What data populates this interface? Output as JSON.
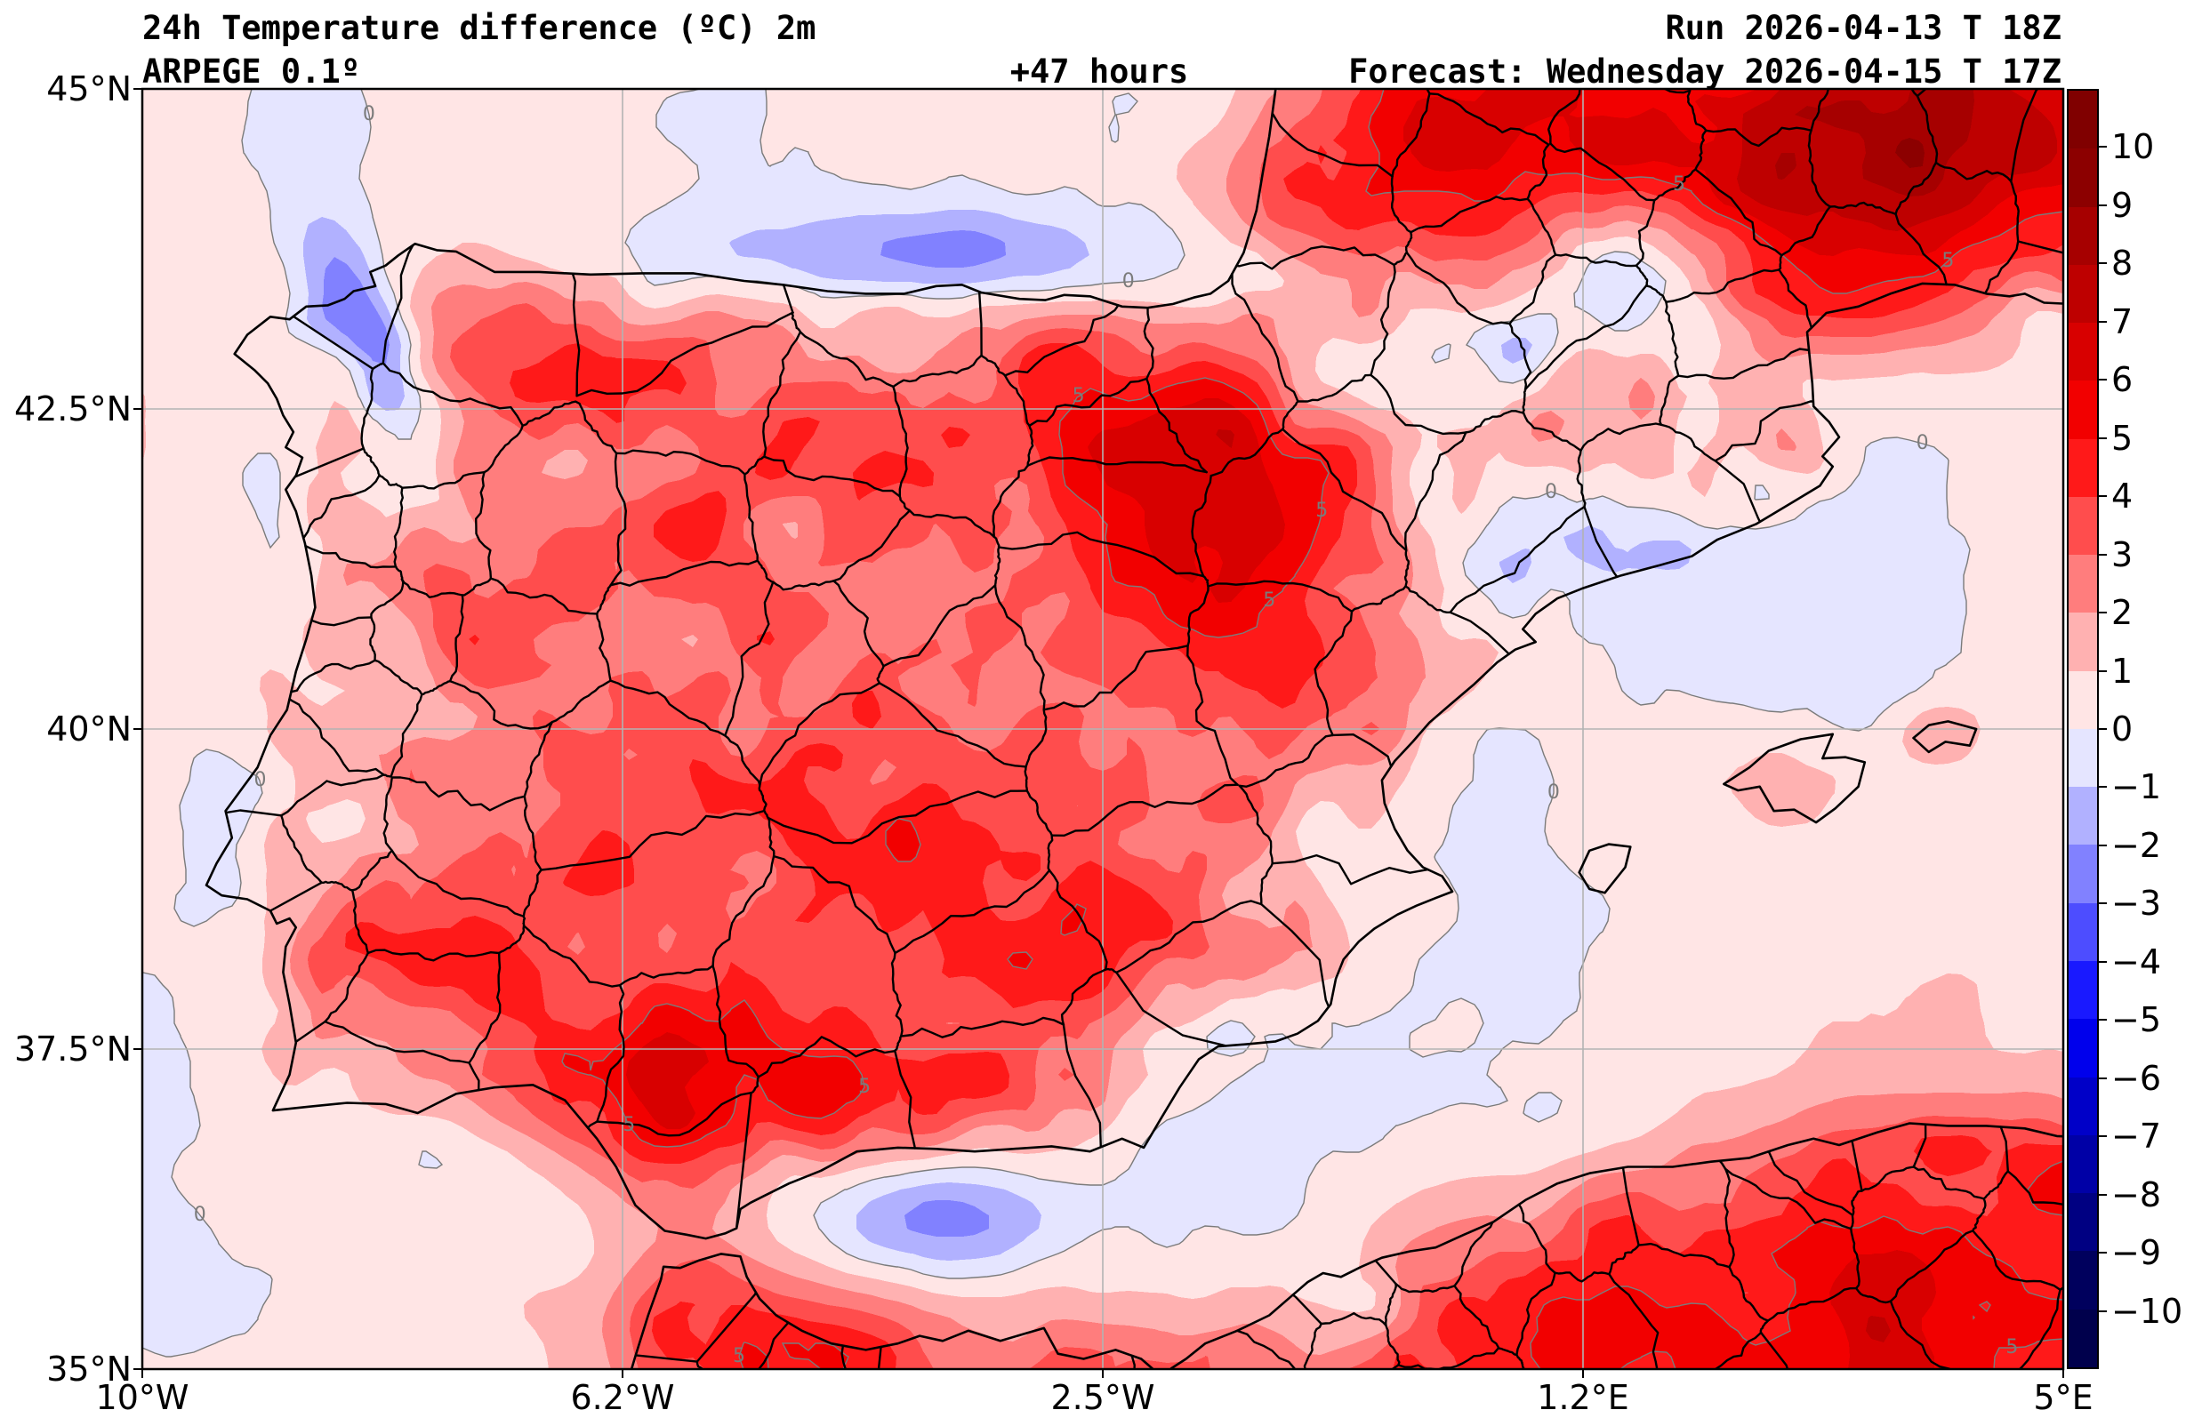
{
  "header": {
    "title": "24h Temperature difference (ºC) 2m",
    "model": "ARPEGE 0.1º",
    "lead_time": "+47 hours",
    "run": "Run 2026-04-13 T 18Z",
    "forecast": "Forecast: Wednesday 2026-04-15 T 17Z"
  },
  "map": {
    "extent": {
      "lon_min": -10,
      "lon_max": 5,
      "lat_min": 35,
      "lat_max": 45
    },
    "lat_ticks": [
      {
        "label": "45°N",
        "value": 45
      },
      {
        "label": "42.5°N",
        "value": 42.5
      },
      {
        "label": "40°N",
        "value": 40
      },
      {
        "label": "37.5°N",
        "value": 37.5
      },
      {
        "label": "35°N",
        "value": 35
      }
    ],
    "lon_ticks": [
      {
        "label": "10°W",
        "value": -10
      },
      {
        "label": "6.2°W",
        "value": -6.25
      },
      {
        "label": "2.5°W",
        "value": -2.5
      },
      {
        "label": "1.2°E",
        "value": 1.25
      },
      {
        "label": "5°E",
        "value": 5
      }
    ],
    "contour_labels": [
      {
        "text": "0",
        "lon": -8.23,
        "lat": 44.8
      },
      {
        "text": "0",
        "lon": -2.3,
        "lat": 43.49
      },
      {
        "text": "0",
        "lon": -9.08,
        "lat": 39.6
      },
      {
        "text": "0",
        "lon": -9.55,
        "lat": 36.2
      },
      {
        "text": "0",
        "lon": 3.9,
        "lat": 42.23
      },
      {
        "text": "0",
        "lon": 1.02,
        "lat": 39.5
      },
      {
        "text": "0",
        "lon": 1.0,
        "lat": 41.85
      },
      {
        "text": "5",
        "lon": -2.69,
        "lat": 42.6
      },
      {
        "text": "5",
        "lon": -0.79,
        "lat": 41.7
      },
      {
        "text": "5",
        "lon": -1.2,
        "lat": 41.0
      },
      {
        "text": "5",
        "lon": 4.1,
        "lat": 43.65
      },
      {
        "text": "5",
        "lon": -6.2,
        "lat": 36.9
      },
      {
        "text": "5",
        "lon": -4.36,
        "lat": 37.2
      },
      {
        "text": "5",
        "lon": -5.34,
        "lat": 35.1
      },
      {
        "text": "5",
        "lon": 4.6,
        "lat": 35.17
      },
      {
        "text": "5",
        "lon": 2.0,
        "lat": 44.25
      }
    ]
  },
  "colorbar": {
    "ticks": [
      "10",
      "9",
      "8",
      "7",
      "6",
      "5",
      "4",
      "3",
      "2",
      "1",
      "0",
      "−1",
      "−2",
      "−3",
      "−4",
      "−5",
      "−6",
      "−7",
      "−8",
      "−9",
      "−10"
    ],
    "tick_values": [
      10,
      9,
      8,
      7,
      6,
      5,
      4,
      3,
      2,
      1,
      0,
      -1,
      -2,
      -3,
      -4,
      -5,
      -6,
      -7,
      -8,
      -9,
      -10
    ],
    "band_colors": [
      "#00004c",
      "#00005d",
      "#000082",
      "#0000a6",
      "#0000c8",
      "#0000ec",
      "#1919ff",
      "#4d4dff",
      "#8181ff",
      "#b1b1ff",
      "#e5e5ff",
      "#ffe5e5",
      "#ffb1b1",
      "#ff7d7d",
      "#ff4d4d",
      "#ff1919",
      "#f20000",
      "#d80000",
      "#be0000",
      "#a60000",
      "#8c0000",
      "#800000"
    ],
    "levels_min": -10,
    "levels_max": 10
  },
  "chart_data": {
    "type": "filled-contour-map",
    "title": "24h Temperature difference (ºC) 2m",
    "variable": "2m temperature 24h difference",
    "units": "°C",
    "model": "ARPEGE 0.1º",
    "run": "2026-04-13 T 18Z",
    "forecast_valid": "Wednesday 2026-04-15 T 17Z",
    "lead_hours": 47,
    "region": "Iberian Peninsula",
    "contour_levels": [
      -10,
      -9,
      -8,
      -7,
      -6,
      -5,
      -4,
      -3,
      -2,
      -1,
      0,
      1,
      2,
      3,
      4,
      5,
      6,
      7,
      8,
      9,
      10
    ],
    "colormap": "seismic (blue-white-red diverging)"
  }
}
